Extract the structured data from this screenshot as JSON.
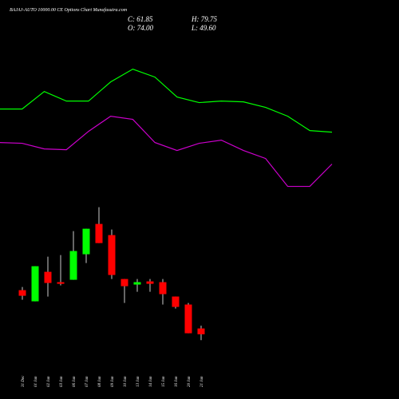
{
  "chart_data": [
    {
      "type": "candlestick",
      "title": "BAJAJ-AUTO 10000.00 CE Options Chart Munafasutra.com",
      "ohlc_labels": {
        "close": "C: 61.85",
        "high": "H: 79.75",
        "open": "O: 74.00",
        "low": "L: 49.60"
      },
      "categories": [
        "31 Dec",
        "01 Jan",
        "02 Jan",
        "03 Jan",
        "06 Jan",
        "07 Jan",
        "08 Jan",
        "09 Jan",
        "10 Jan",
        "13 Jan",
        "14 Jan",
        "15 Jan",
        "16 Jan",
        "20 Jan",
        "21 Jan"
      ],
      "open": [
        154,
        130.7,
        192.3,
        170.7,
        175.7,
        229,
        292.3,
        269,
        177.3,
        165.7,
        172.3,
        170.7,
        140.7,
        124,
        74
      ],
      "high": [
        160.7,
        204,
        224,
        227.3,
        277.3,
        282.3,
        327.3,
        280.7,
        177.3,
        177.3,
        177.3,
        177.3,
        140.7,
        127.3,
        79.75
      ],
      "low": [
        134,
        130.7,
        140.7,
        164,
        175.7,
        210.7,
        252.3,
        177.3,
        127.3,
        150.7,
        150.7,
        124,
        115.7,
        64,
        49.6
      ],
      "close": [
        142.3,
        204,
        169,
        167.3,
        235.7,
        282.3,
        252.3,
        185.7,
        162.3,
        170.7,
        167.3,
        145.7,
        119,
        64,
        61.85
      ],
      "up_color": "#00ff00",
      "down_color": "#ff0000",
      "ylim": [
        0,
        760
      ]
    },
    {
      "type": "line",
      "x": [
        0,
        1,
        2,
        3,
        4,
        5,
        6,
        7,
        8,
        9,
        10,
        11,
        12,
        13,
        14,
        15
      ],
      "xlim": [
        0,
        15
      ],
      "series": [
        {
          "color": "#00ff00",
          "values": [
            532.3,
            532.3,
            568.9,
            548.9,
            548.9,
            588.9,
            615.6,
            599,
            557.3,
            545.7,
            548.9,
            547.3,
            535.7,
            517.3,
            487.3,
            484
          ]
        },
        {
          "color": "#cc00cc",
          "values": [
            462.3,
            460.7,
            449,
            447.3,
            485.7,
            517.3,
            510.7,
            462.3,
            445.7,
            460.7,
            467.3,
            445.7,
            429,
            370.7,
            370.7,
            417.3
          ]
        }
      ],
      "ylim": [
        0,
        760
      ]
    }
  ]
}
